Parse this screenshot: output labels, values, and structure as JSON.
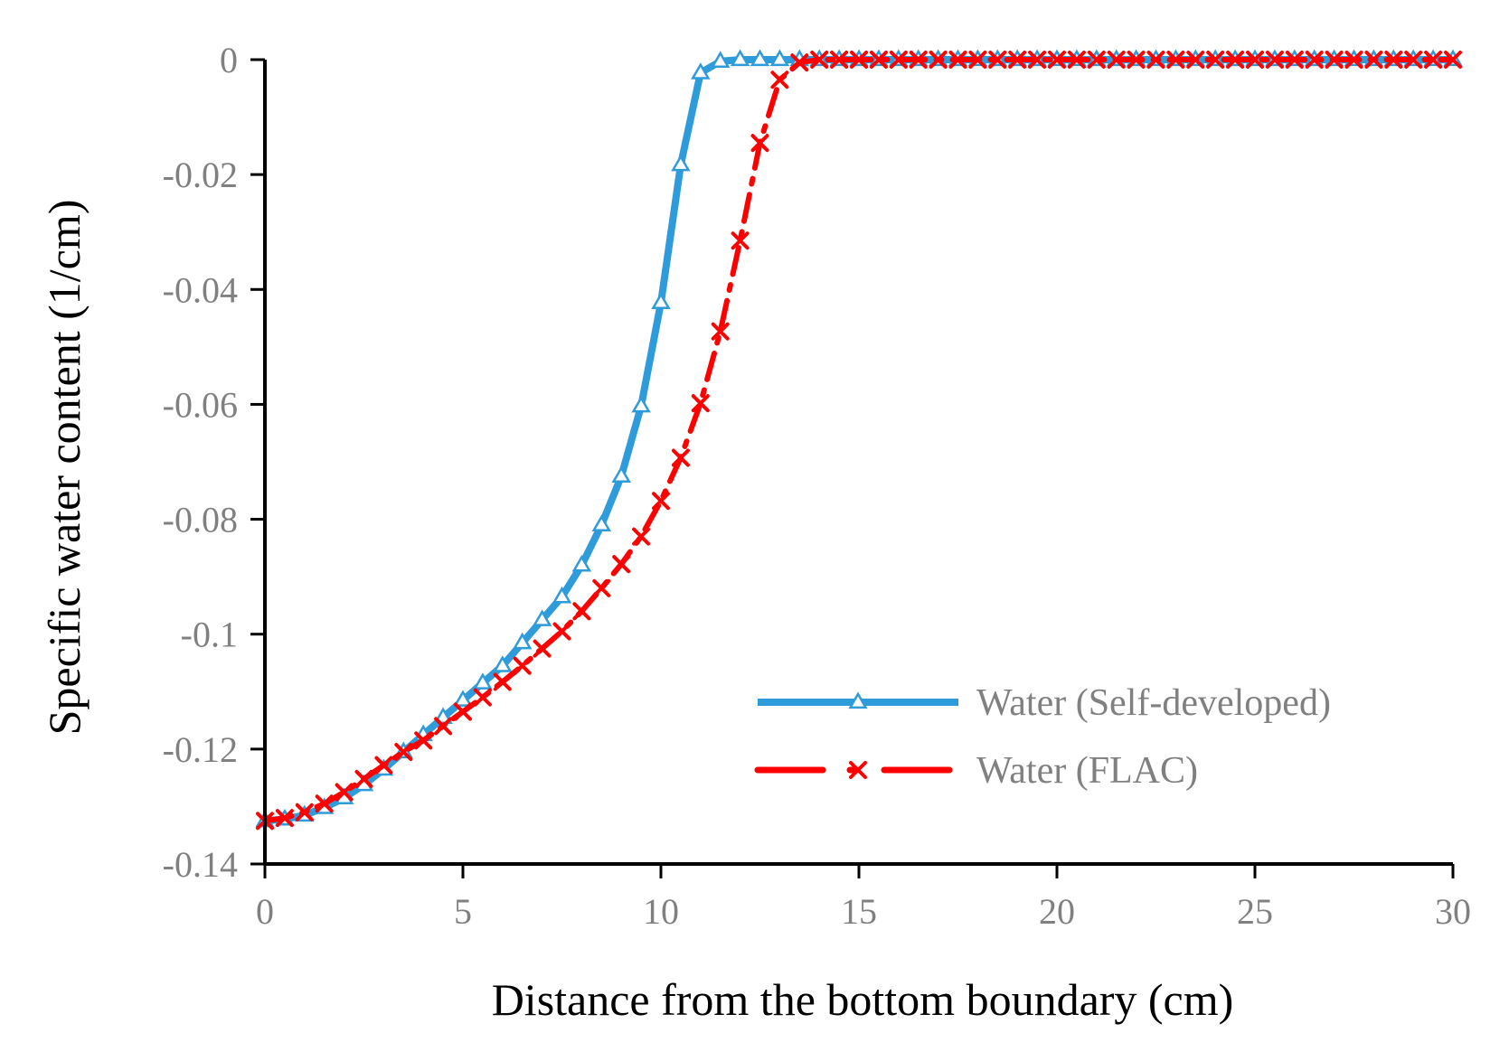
{
  "chart_data": {
    "type": "line",
    "title": "",
    "xlabel": "Distance from the bottom boundary (cm)",
    "ylabel": "Specific water content (1/cm)",
    "xlim": [
      0,
      30
    ],
    "ylim": [
      -0.14,
      0
    ],
    "x_ticks": [
      0,
      5,
      10,
      15,
      20,
      25,
      30
    ],
    "y_ticks": [
      0,
      -0.02,
      -0.04,
      -0.06,
      -0.08,
      -0.1,
      -0.12,
      -0.14
    ],
    "x_tick_labels": [
      "0",
      "5",
      "10",
      "15",
      "20",
      "25",
      "30"
    ],
    "y_tick_labels": [
      "0",
      "-0.02",
      "-0.04",
      "-0.06",
      "-0.08",
      "-0.1",
      "-0.12",
      "-0.14"
    ],
    "grid": false,
    "legend_position": "bottom-right",
    "series": [
      {
        "name": "Water (Self-developed)",
        "color": "#2E9BDA",
        "line_style": "solid",
        "marker": "triangle",
        "x": [
          0,
          0.5,
          1,
          1.5,
          2,
          2.5,
          3,
          3.5,
          4,
          4.5,
          5,
          5.5,
          6,
          6.5,
          7,
          7.5,
          8,
          8.5,
          9,
          9.5,
          10,
          10.5,
          11,
          11.5,
          12,
          12.5,
          13,
          13.5,
          14,
          14.5,
          15,
          15.5,
          16,
          16.5,
          17,
          17.5,
          18,
          18.5,
          19,
          19.5,
          20,
          20.5,
          21,
          21.5,
          22,
          22.5,
          23,
          23.5,
          24,
          24.5,
          25,
          25.5,
          26,
          26.5,
          27,
          27.5,
          28,
          28.5,
          29,
          29.5,
          30
        ],
        "y": [
          -0.1325,
          -0.1322,
          -0.1315,
          -0.1302,
          -0.1285,
          -0.1262,
          -0.1235,
          -0.1205,
          -0.1175,
          -0.1145,
          -0.1115,
          -0.1085,
          -0.1055,
          -0.1015,
          -0.0975,
          -0.0935,
          -0.088,
          -0.081,
          -0.0725,
          -0.0603,
          -0.0423,
          -0.0183,
          -0.0023,
          -0.0003,
          0,
          0,
          0,
          0,
          0,
          0,
          0,
          0,
          0,
          0,
          0,
          0,
          0,
          0,
          0,
          0,
          0,
          0,
          0,
          0,
          0,
          0,
          0,
          0,
          0,
          0,
          0,
          0,
          0,
          0,
          0,
          0,
          0,
          0,
          0,
          0,
          0
        ]
      },
      {
        "name": "Water (FLAC)",
        "color": "#FF0000",
        "line_style": "dash-dot",
        "marker": "x",
        "x": [
          0,
          0.5,
          1,
          1.5,
          2,
          2.5,
          3,
          3.5,
          4,
          4.5,
          5,
          5.5,
          6,
          6.5,
          7,
          7.5,
          8,
          8.5,
          9,
          9.5,
          10,
          10.5,
          11,
          11.5,
          12,
          12.5,
          13,
          13.5,
          14,
          14.5,
          15,
          15.5,
          16,
          16.5,
          17,
          17.5,
          18,
          18.5,
          19,
          19.5,
          20,
          20.5,
          21,
          21.5,
          22,
          22.5,
          23,
          23.5,
          24,
          24.5,
          25,
          25.5,
          26,
          26.5,
          27,
          27.5,
          28,
          28.5,
          29,
          29.5,
          30
        ],
        "y": [
          -0.1325,
          -0.132,
          -0.131,
          -0.1295,
          -0.1275,
          -0.1252,
          -0.1228,
          -0.1205,
          -0.1185,
          -0.116,
          -0.1135,
          -0.111,
          -0.1083,
          -0.1055,
          -0.1025,
          -0.0995,
          -0.096,
          -0.092,
          -0.0878,
          -0.083,
          -0.0768,
          -0.0693,
          -0.0598,
          -0.0473,
          -0.0315,
          -0.0145,
          -0.0035,
          -0.0005,
          0,
          0,
          0,
          0,
          0,
          0,
          0,
          0,
          0,
          0,
          0,
          0,
          0,
          0,
          0,
          0,
          0,
          0,
          0,
          0,
          0,
          0,
          0,
          0,
          0,
          0,
          0,
          0,
          0,
          0,
          0,
          0,
          0
        ]
      }
    ]
  }
}
